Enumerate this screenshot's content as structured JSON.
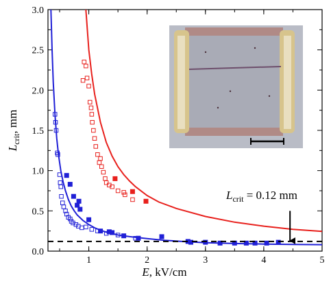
{
  "chart_data": {
    "type": "scatter",
    "xlabel": {
      "main": "E",
      "rest": ", kV/cm"
    },
    "ylabel": {
      "main": "L",
      "sub": "crit",
      "rest": ", mm"
    },
    "xlim": [
      0.3,
      5.0
    ],
    "ylim": [
      0.0,
      3.0
    ],
    "xticks": [
      {
        "value": 1,
        "label": "1"
      },
      {
        "value": 2,
        "label": "2"
      },
      {
        "value": 3,
        "label": "3"
      },
      {
        "value": 4,
        "label": "4"
      },
      {
        "value": 5,
        "label": "5"
      }
    ],
    "yticks": [
      {
        "value": 0.0,
        "label": "0.0"
      },
      {
        "value": 0.5,
        "label": "0.5"
      },
      {
        "value": 1.0,
        "label": "1.0"
      },
      {
        "value": 1.5,
        "label": "1.5"
      },
      {
        "value": 2.0,
        "label": "2.0"
      },
      {
        "value": 2.5,
        "label": "2.5"
      },
      {
        "value": 3.0,
        "label": "3.0"
      }
    ],
    "colors": {
      "blue": "#1f1fd6",
      "red": "#e8201c",
      "axis": "#000000"
    },
    "annotation": {
      "main": "L",
      "sub": "crit",
      "rest": " = 0.12 mm",
      "arrow_x": 4.45,
      "arrow_from_y": 0.5,
      "arrow_to_y": 0.12
    },
    "reference_line": {
      "y": 0.12,
      "style": "dashed"
    },
    "series": [
      {
        "color": "blue",
        "kind": "fit-curve",
        "points": [
          [
            0.35,
            3.0
          ],
          [
            0.37,
            2.5
          ],
          [
            0.39,
            2.1
          ],
          [
            0.42,
            1.7
          ],
          [
            0.45,
            1.4
          ],
          [
            0.48,
            1.2
          ],
          [
            0.52,
            1.0
          ],
          [
            0.56,
            0.86
          ],
          [
            0.6,
            0.75
          ],
          [
            0.65,
            0.64
          ],
          [
            0.7,
            0.56
          ],
          [
            0.75,
            0.5
          ],
          [
            0.8,
            0.45
          ],
          [
            0.9,
            0.38
          ],
          [
            1.0,
            0.33
          ],
          [
            1.1,
            0.29
          ],
          [
            1.2,
            0.26
          ],
          [
            1.3,
            0.235
          ],
          [
            1.5,
            0.2
          ],
          [
            1.7,
            0.18
          ],
          [
            2.0,
            0.155
          ],
          [
            2.3,
            0.135
          ],
          [
            2.6,
            0.12
          ],
          [
            3.0,
            0.105
          ],
          [
            3.5,
            0.095
          ],
          [
            4.0,
            0.088
          ],
          [
            4.5,
            0.083
          ],
          [
            5.0,
            0.08
          ]
        ]
      },
      {
        "color": "red",
        "kind": "fit-curve",
        "points": [
          [
            0.95,
            3.0
          ],
          [
            1.0,
            2.5
          ],
          [
            1.05,
            2.2
          ],
          [
            1.1,
            1.95
          ],
          [
            1.2,
            1.6
          ],
          [
            1.3,
            1.35
          ],
          [
            1.4,
            1.18
          ],
          [
            1.5,
            1.05
          ],
          [
            1.6,
            0.95
          ],
          [
            1.7,
            0.87
          ],
          [
            1.8,
            0.8
          ],
          [
            2.0,
            0.69
          ],
          [
            2.2,
            0.61
          ],
          [
            2.5,
            0.53
          ],
          [
            3.0,
            0.43
          ],
          [
            3.5,
            0.36
          ],
          [
            4.0,
            0.31
          ],
          [
            4.5,
            0.27
          ],
          [
            5.0,
            0.245
          ]
        ]
      },
      {
        "color": "blue",
        "kind": "open-squares",
        "points": [
          [
            0.42,
            1.7
          ],
          [
            0.43,
            1.6
          ],
          [
            0.44,
            1.5
          ],
          [
            0.46,
            1.22
          ],
          [
            0.47,
            1.2
          ],
          [
            0.5,
            0.95
          ],
          [
            0.51,
            0.85
          ],
          [
            0.52,
            0.8
          ],
          [
            0.53,
            0.68
          ],
          [
            0.55,
            0.6
          ],
          [
            0.57,
            0.55
          ],
          [
            0.6,
            0.5
          ],
          [
            0.62,
            0.46
          ],
          [
            0.65,
            0.42
          ],
          [
            0.68,
            0.4
          ],
          [
            0.7,
            0.37
          ],
          [
            0.73,
            0.35
          ],
          [
            0.78,
            0.33
          ],
          [
            0.82,
            0.31
          ],
          [
            0.88,
            0.29
          ],
          [
            0.95,
            0.3
          ],
          [
            1.05,
            0.27
          ],
          [
            1.15,
            0.25
          ],
          [
            1.3,
            0.22
          ],
          [
            1.5,
            0.2
          ],
          [
            1.8,
            0.16
          ]
        ]
      },
      {
        "color": "blue",
        "kind": "filled-squares",
        "points": [
          [
            0.62,
            0.94
          ],
          [
            0.68,
            0.83
          ],
          [
            0.8,
            0.57
          ],
          [
            0.83,
            0.62
          ],
          [
            0.85,
            0.52
          ],
          [
            0.74,
            0.68
          ],
          [
            1.0,
            0.39
          ],
          [
            1.2,
            0.25
          ],
          [
            1.35,
            0.24
          ],
          [
            1.4,
            0.23
          ],
          [
            1.6,
            0.19
          ],
          [
            1.85,
            0.16
          ],
          [
            2.25,
            0.18
          ],
          [
            2.7,
            0.12
          ],
          [
            2.75,
            0.11
          ],
          [
            3.0,
            0.11
          ],
          [
            3.25,
            0.1
          ],
          [
            3.5,
            0.1
          ],
          [
            3.7,
            0.1
          ],
          [
            3.85,
            0.1
          ],
          [
            4.05,
            0.1
          ],
          [
            4.25,
            0.11
          ]
        ]
      },
      {
        "color": "red",
        "kind": "open-squares",
        "points": [
          [
            0.9,
            2.12
          ],
          [
            0.92,
            2.35
          ],
          [
            0.95,
            2.3
          ],
          [
            0.97,
            2.15
          ],
          [
            1.0,
            2.05
          ],
          [
            1.02,
            1.85
          ],
          [
            1.04,
            1.78
          ],
          [
            1.05,
            1.7
          ],
          [
            1.06,
            1.6
          ],
          [
            1.08,
            1.5
          ],
          [
            1.1,
            1.4
          ],
          [
            1.12,
            1.3
          ],
          [
            1.15,
            1.2
          ],
          [
            1.18,
            1.1
          ],
          [
            1.2,
            1.15
          ],
          [
            1.22,
            1.05
          ],
          [
            1.25,
            0.98
          ],
          [
            1.28,
            0.9
          ],
          [
            1.3,
            0.85
          ],
          [
            1.35,
            0.82
          ],
          [
            1.4,
            0.8
          ],
          [
            1.5,
            0.75
          ],
          [
            1.6,
            0.73
          ],
          [
            1.62,
            0.7
          ],
          [
            1.75,
            0.64
          ]
        ]
      },
      {
        "color": "red",
        "kind": "filled-squares",
        "points": [
          [
            1.45,
            0.9
          ],
          [
            1.75,
            0.74
          ],
          [
            1.98,
            0.62
          ]
        ]
      }
    ],
    "inset": {
      "scale_bar": true
    }
  }
}
